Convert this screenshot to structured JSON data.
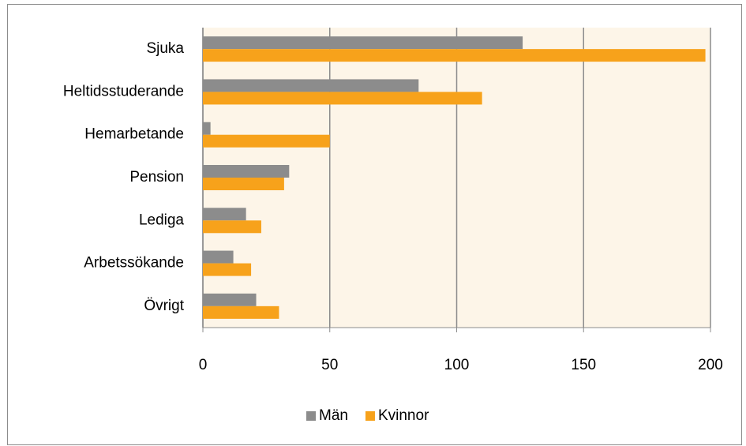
{
  "chart_data": {
    "type": "barh",
    "categories": [
      "Sjuka",
      "Heltidsstuderande",
      "Hemarbetande",
      "Pension",
      "Lediga",
      "Arbetssökande",
      "Övrigt"
    ],
    "series": [
      {
        "name": "Män",
        "color": "#8c8c8c",
        "values": [
          126,
          85,
          3,
          34,
          17,
          12,
          21
        ]
      },
      {
        "name": "Kvinnor",
        "color": "#f7a21b",
        "values": [
          198,
          110,
          50,
          32,
          23,
          19,
          30
        ]
      }
    ],
    "xlim": [
      0,
      200
    ],
    "xticks": [
      0,
      50,
      100,
      150,
      200
    ],
    "grid": true,
    "legend": "bottom"
  }
}
